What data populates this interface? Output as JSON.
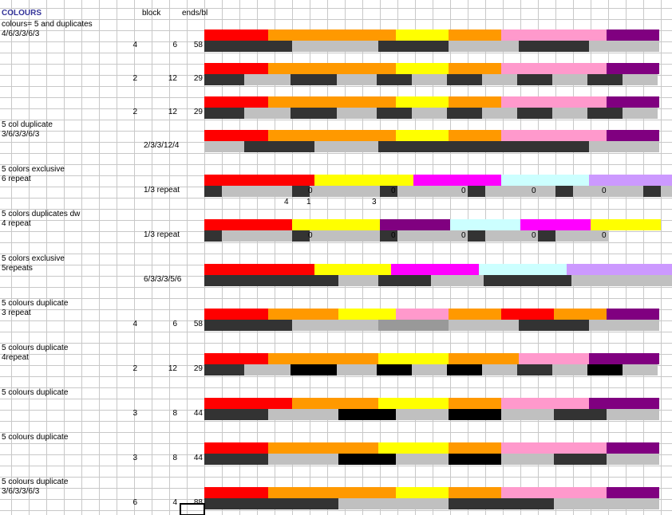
{
  "header": {
    "title": "COLOURS",
    "block": "block",
    "ends": "ends/bl"
  },
  "colors": {
    "R": "#ff0000",
    "O": "#ff9900",
    "Y": "#ffff00",
    "P": "#ff99cc",
    "V": "#800080",
    "K": "#333333",
    "L": "#c0c0c0",
    "B": "#000000",
    "M": "#ff00ff",
    "C": "#ccffff",
    "W": "#cc99ff",
    "G": "#999999"
  },
  "rows": [
    {
      "lines": [
        "colours= 5  and duplicates",
        "4/6/3/3/6/3"
      ],
      "block": "4",
      "ends": "58",
      "top": [
        [
          "R",
          80
        ],
        [
          "O",
          160
        ],
        [
          "Y",
          66
        ],
        [
          "O",
          66
        ],
        [
          "P",
          132
        ],
        [
          "V",
          66
        ]
      ],
      "bottom": [
        [
          "K",
          110
        ],
        [
          "L",
          108
        ],
        [
          "K",
          88
        ],
        [
          "L",
          88
        ],
        [
          "K",
          88
        ],
        [
          "L",
          88
        ]
      ]
    },
    {
      "lines": [
        "",
        ""
      ],
      "block": "2",
      "ends": "12",
      "ends2": "29",
      "top": [
        [
          "R",
          80
        ],
        [
          "O",
          160
        ],
        [
          "Y",
          66
        ],
        [
          "O",
          66
        ],
        [
          "P",
          132
        ],
        [
          "V",
          66
        ]
      ],
      "bottom": [
        [
          "K",
          50
        ],
        [
          "L",
          58
        ],
        [
          "K",
          58
        ],
        [
          "L",
          50
        ],
        [
          "K",
          44
        ],
        [
          "L",
          44
        ],
        [
          "K",
          44
        ],
        [
          "L",
          44
        ],
        [
          "K",
          44
        ],
        [
          "L",
          44
        ],
        [
          "K",
          44
        ],
        [
          "L",
          44
        ]
      ]
    },
    {
      "lines": [
        "",
        ""
      ],
      "block": "2",
      "ends": "12",
      "ends2": "29",
      "top": [
        [
          "R",
          80
        ],
        [
          "O",
          160
        ],
        [
          "Y",
          66
        ],
        [
          "O",
          66
        ],
        [
          "P",
          132
        ],
        [
          "V",
          66
        ]
      ],
      "bottom": [
        [
          "K",
          50
        ],
        [
          "L",
          58
        ],
        [
          "K",
          58
        ],
        [
          "L",
          50
        ],
        [
          "K",
          44
        ],
        [
          "L",
          44
        ],
        [
          "K",
          44
        ],
        [
          "L",
          44
        ],
        [
          "K",
          44
        ],
        [
          "L",
          44
        ],
        [
          "K",
          44
        ],
        [
          "L",
          44
        ]
      ]
    },
    {
      "lines": [
        "5 col duplicate",
        "3/6/3/3/6/3"
      ],
      "blocktext": "2/3/3/12/4",
      "top": [
        [
          "R",
          80
        ],
        [
          "O",
          160
        ],
        [
          "Y",
          66
        ],
        [
          "O",
          66
        ],
        [
          "P",
          132
        ],
        [
          "V",
          66
        ]
      ],
      "bottom": [
        [
          "L",
          50
        ],
        [
          "K",
          88
        ],
        [
          "L",
          80
        ],
        [
          "K",
          264
        ],
        [
          "L",
          88
        ]
      ]
    },
    {
      "lines": [
        "5 colors exclusive",
        " 6 repeat"
      ],
      "blocktext": "1/3 repeat",
      "top": [
        [
          "R",
          138
        ],
        [
          "Y",
          124
        ],
        [
          "M",
          110
        ],
        [
          "C",
          110
        ],
        [
          "W",
          104
        ]
      ],
      "bottom": [
        [
          "K",
          22
        ],
        [
          "L",
          88
        ],
        [
          "K",
          22
        ],
        [
          "L",
          88
        ],
        [
          "K",
          22
        ],
        [
          "L",
          88
        ],
        [
          "K",
          22
        ],
        [
          "L",
          88
        ],
        [
          "K",
          22
        ],
        [
          "L",
          88
        ],
        [
          "K",
          22
        ],
        [
          "L",
          88
        ],
        [
          "K",
          18
        ]
      ],
      "zeros": [
        "0",
        "0",
        "0",
        "0",
        "0"
      ],
      "extra": [
        "4",
        "1",
        "3"
      ]
    },
    {
      "lines": [
        "5 colors duplicates dw",
        "4 repeat"
      ],
      "blocktext": "1/3 repeat",
      "top": [
        [
          "R",
          110
        ],
        [
          "Y",
          110
        ],
        [
          "V",
          88
        ],
        [
          "C",
          88
        ],
        [
          "M",
          88
        ],
        [
          "Y",
          88
        ]
      ],
      "bottom": [
        [
          "K",
          22
        ],
        [
          "L",
          88
        ],
        [
          "K",
          22
        ],
        [
          "L",
          88
        ],
        [
          "K",
          22
        ],
        [
          "L",
          88
        ],
        [
          "K",
          22
        ],
        [
          "L",
          66
        ],
        [
          "K",
          22
        ],
        [
          "L",
          66
        ]
      ],
      "zeros": [
        "0",
        "0",
        "0",
        "0",
        "0"
      ]
    },
    {
      "lines": [
        "5 colors exclusive",
        "5repeats"
      ],
      "blocktext": "6/3/3/3/5/6",
      "top": [
        [
          "R",
          138
        ],
        [
          "Y",
          96
        ],
        [
          "M",
          110
        ],
        [
          "C",
          110
        ],
        [
          "W",
          132
        ]
      ],
      "bottom": [
        [
          "K",
          168
        ],
        [
          "L",
          50
        ],
        [
          "K",
          66
        ],
        [
          "L",
          66
        ],
        [
          "K",
          110
        ],
        [
          "L",
          126
        ]
      ]
    },
    {
      "lines": [
        "5 colours duplicate",
        "3 repeat"
      ],
      "block": "4",
      "ends": "6",
      "ends2": "58",
      "top": [
        [
          "R",
          80
        ],
        [
          "O",
          88
        ],
        [
          "Y",
          72
        ],
        [
          "P",
          66
        ],
        [
          "O",
          66
        ],
        [
          "R",
          66
        ],
        [
          "O",
          66
        ],
        [
          "V",
          66
        ]
      ],
      "bottom": [
        [
          "K",
          110
        ],
        [
          "L",
          108
        ],
        [
          "G",
          88
        ],
        [
          "L",
          88
        ],
        [
          "K",
          88
        ],
        [
          "L",
          88
        ]
      ]
    },
    {
      "lines": [
        "5 colours duplicate",
        " 4repeat"
      ],
      "block": "2",
      "ends": "12",
      "ends2": "29",
      "top": [
        [
          "R",
          80
        ],
        [
          "O",
          138
        ],
        [
          "Y",
          88
        ],
        [
          "O",
          88
        ],
        [
          "P",
          88
        ],
        [
          "V",
          88
        ]
      ],
      "bottom": [
        [
          "K",
          50
        ],
        [
          "L",
          58
        ],
        [
          "B",
          58
        ],
        [
          "L",
          50
        ],
        [
          "B",
          44
        ],
        [
          "L",
          44
        ],
        [
          "B",
          44
        ],
        [
          "L",
          44
        ],
        [
          "K",
          44
        ],
        [
          "L",
          44
        ],
        [
          "B",
          44
        ],
        [
          "L",
          44
        ]
      ]
    },
    {
      "lines": [
        "5 colours duplicate",
        ""
      ],
      "block": "3",
      "ends": "8",
      "ends2": "44",
      "top": [
        [
          "R",
          110
        ],
        [
          "O",
          108
        ],
        [
          "Y",
          88
        ],
        [
          "O",
          66
        ],
        [
          "P",
          110
        ],
        [
          "V",
          88
        ]
      ],
      "bottom": [
        [
          "K",
          80
        ],
        [
          "L",
          88
        ],
        [
          "B",
          72
        ],
        [
          "L",
          66
        ],
        [
          "B",
          66
        ],
        [
          "L",
          66
        ],
        [
          "K",
          66
        ],
        [
          "L",
          66
        ]
      ]
    },
    {
      "lines": [
        "5 colours duplicate",
        ""
      ],
      "block": "3",
      "ends": "8",
      "ends2": "44",
      "top": [
        [
          "R",
          80
        ],
        [
          "O",
          138
        ],
        [
          "Y",
          88
        ],
        [
          "O",
          66
        ],
        [
          "P",
          132
        ],
        [
          "V",
          66
        ]
      ],
      "bottom": [
        [
          "K",
          80
        ],
        [
          "L",
          88
        ],
        [
          "B",
          72
        ],
        [
          "L",
          66
        ],
        [
          "B",
          66
        ],
        [
          "L",
          66
        ],
        [
          "K",
          66
        ],
        [
          "L",
          66
        ]
      ]
    },
    {
      "lines": [
        "5 colours duplicate",
        "3/6/3/3/6/3"
      ],
      "block": "6",
      "ends": "4",
      "ends2": "88",
      "top": [
        [
          "R",
          80
        ],
        [
          "O",
          160
        ],
        [
          "Y",
          66
        ],
        [
          "O",
          66
        ],
        [
          "P",
          132
        ],
        [
          "V",
          66
        ]
      ],
      "bottom": [
        [
          "K",
          168
        ],
        [
          "L",
          138
        ],
        [
          "K",
          132
        ],
        [
          "L",
          132
        ]
      ]
    }
  ]
}
